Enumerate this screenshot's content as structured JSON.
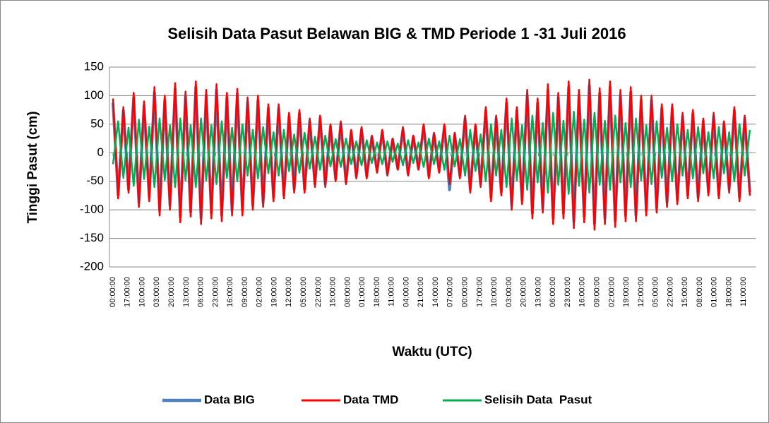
{
  "chart_data": {
    "type": "line",
    "title": "Selisih Data Pasut Belawan BIG & TMD Periode 1 -31 Juli 2016",
    "x_label": "Waktu (UTC)",
    "y_label": "Tinggi Pasut (cm)",
    "x": [
      0,
      6,
      12,
      18,
      24,
      30,
      36,
      42,
      48,
      54,
      60,
      66,
      72,
      78,
      84,
      90,
      96,
      102,
      108,
      114,
      120,
      126,
      132,
      138,
      144,
      150,
      156,
      162,
      168,
      174,
      180,
      186,
      192,
      198,
      204,
      210,
      216,
      222,
      228,
      234,
      240,
      246,
      252,
      258,
      264,
      270,
      276,
      282,
      288,
      294,
      300,
      306,
      312,
      318,
      324,
      330,
      336,
      342,
      348,
      354,
      360,
      366,
      372,
      378,
      384,
      390,
      396,
      402,
      408,
      414,
      420,
      426,
      432,
      438,
      444,
      450,
      456,
      462,
      468,
      474,
      480,
      486,
      492,
      498,
      504,
      510,
      516,
      522,
      528,
      534,
      540,
      546,
      552,
      558,
      564,
      570,
      576,
      582,
      588,
      594,
      600,
      606,
      612,
      618,
      624,
      630,
      636,
      642,
      648,
      654,
      660,
      666,
      672,
      678,
      684,
      690,
      696,
      702,
      708,
      714,
      720,
      726,
      732,
      738
    ],
    "series": [
      {
        "name": "Data BIG",
        "color": "#4f81bd",
        "width": 4,
        "values": [
          87,
          -74,
          74,
          -64,
          97,
          -87,
          83,
          -78,
          106,
          -101,
          92,
          -92,
          112,
          -112,
          98,
          -103,
          115,
          -115,
          101,
          -106,
          110,
          -110,
          97,
          -101,
          103,
          -101,
          89,
          -92,
          92,
          -87,
          78,
          -78,
          78,
          -74,
          64,
          -64,
          69,
          -64,
          55,
          -55,
          60,
          -55,
          46,
          -46,
          51,
          -51,
          37,
          -41,
          41,
          -41,
          28,
          -32,
          37,
          -37,
          23,
          -28,
          41,
          -37,
          28,
          -28,
          46,
          -41,
          32,
          -32,
          46,
          -65,
          32,
          -41,
          60,
          -64,
          46,
          -55,
          74,
          -78,
          60,
          -69,
          87,
          -92,
          74,
          -83,
          101,
          -106,
          87,
          -97,
          110,
          -115,
          97,
          -106,
          115,
          -121,
          101,
          -112,
          118,
          -124,
          104,
          -115,
          115,
          -120,
          101,
          -110,
          106,
          -110,
          92,
          -101,
          92,
          -97,
          78,
          -87,
          78,
          -83,
          64,
          -74,
          69,
          -78,
          55,
          -69,
          64,
          -74,
          51,
          -64,
          74,
          -78,
          60,
          -69
        ]
      },
      {
        "name": "Data TMD",
        "color": "#ff0000",
        "width": 2.5,
        "values": [
          95,
          -80,
          80,
          -70,
          105,
          -95,
          90,
          -85,
          115,
          -110,
          100,
          -100,
          122,
          -122,
          107,
          -112,
          125,
          -125,
          110,
          -115,
          120,
          -120,
          105,
          -110,
          112,
          -110,
          97,
          -100,
          100,
          -95,
          85,
          -85,
          85,
          -80,
          70,
          -70,
          75,
          -70,
          60,
          -60,
          65,
          -60,
          50,
          -50,
          55,
          -55,
          40,
          -45,
          45,
          -45,
          30,
          -35,
          40,
          -40,
          25,
          -30,
          45,
          -40,
          30,
          -30,
          50,
          -45,
          35,
          -35,
          50,
          -55,
          35,
          -45,
          65,
          -70,
          50,
          -60,
          80,
          -85,
          65,
          -75,
          95,
          -100,
          80,
          -90,
          110,
          -115,
          95,
          -105,
          120,
          -125,
          105,
          -115,
          125,
          -132,
          110,
          -122,
          128,
          -135,
          113,
          -125,
          125,
          -130,
          110,
          -120,
          115,
          -120,
          100,
          -110,
          100,
          -105,
          85,
          -95,
          85,
          -90,
          70,
          -80,
          75,
          -85,
          60,
          -75,
          70,
          -80,
          55,
          -70,
          80,
          -85,
          65,
          -75
        ]
      },
      {
        "name": "Selisih Data  Pasut",
        "color": "#00b050",
        "width": 2.5,
        "values": [
          -20,
          55,
          -44,
          44,
          -58,
          58,
          -46,
          46,
          -60,
          60,
          -48,
          48,
          -60,
          60,
          -48,
          48,
          -60,
          60,
          -48,
          48,
          -55,
          55,
          -44,
          44,
          -50,
          50,
          -40,
          40,
          -45,
          45,
          -36,
          36,
          -40,
          40,
          -32,
          32,
          -35,
          35,
          -28,
          28,
          -30,
          30,
          -24,
          24,
          -25,
          25,
          -20,
          20,
          -22,
          22,
          -18,
          18,
          -20,
          20,
          -16,
          16,
          -22,
          22,
          -18,
          18,
          -25,
          25,
          -20,
          20,
          -30,
          30,
          -24,
          24,
          -40,
          40,
          -32,
          32,
          -50,
          50,
          -40,
          40,
          -60,
          60,
          -48,
          48,
          -65,
          65,
          -52,
          52,
          -70,
          70,
          -56,
          56,
          -72,
          72,
          -58,
          58,
          -70,
          70,
          -56,
          56,
          -65,
          65,
          -52,
          52,
          -60,
          60,
          -48,
          48,
          -55,
          55,
          -44,
          44,
          -50,
          50,
          -40,
          40,
          -45,
          45,
          -36,
          36,
          -45,
          45,
          -36,
          36,
          -50,
          50,
          -40,
          40
        ]
      }
    ],
    "xlim": [
      0,
      743
    ],
    "xticks": [
      {
        "value": 0,
        "label": "00:00:00"
      },
      {
        "value": 17,
        "label": "17:00:00"
      },
      {
        "value": 34,
        "label": "10:00:00"
      },
      {
        "value": 51,
        "label": "03:00:00"
      },
      {
        "value": 68,
        "label": "20:00:00"
      },
      {
        "value": 85,
        "label": "13:00:00"
      },
      {
        "value": 102,
        "label": "06:00:00"
      },
      {
        "value": 119,
        "label": "23:00:00"
      },
      {
        "value": 136,
        "label": "16:00:00"
      },
      {
        "value": 153,
        "label": "09:00:00"
      },
      {
        "value": 170,
        "label": "02:00:00"
      },
      {
        "value": 187,
        "label": "19:00:00"
      },
      {
        "value": 204,
        "label": "12:00:00"
      },
      {
        "value": 221,
        "label": "05:00:00"
      },
      {
        "value": 238,
        "label": "22:00:00"
      },
      {
        "value": 255,
        "label": "15:00:00"
      },
      {
        "value": 272,
        "label": "08:00:00"
      },
      {
        "value": 289,
        "label": "01:00:00"
      },
      {
        "value": 306,
        "label": "18:00:00"
      },
      {
        "value": 323,
        "label": "11:00:00"
      },
      {
        "value": 340,
        "label": "04:00:00"
      },
      {
        "value": 357,
        "label": "21:00:00"
      },
      {
        "value": 374,
        "label": "14:00:00"
      },
      {
        "value": 391,
        "label": "07:00:00"
      },
      {
        "value": 408,
        "label": "00:00:00"
      },
      {
        "value": 425,
        "label": "17:00:00"
      },
      {
        "value": 442,
        "label": "10:00:00"
      },
      {
        "value": 459,
        "label": "03:00:00"
      },
      {
        "value": 476,
        "label": "20:00:00"
      },
      {
        "value": 493,
        "label": "13:00:00"
      },
      {
        "value": 510,
        "label": "06:00:00"
      },
      {
        "value": 527,
        "label": "23:00:00"
      },
      {
        "value": 544,
        "label": "16:00:00"
      },
      {
        "value": 561,
        "label": "09:00:00"
      },
      {
        "value": 578,
        "label": "02:00:00"
      },
      {
        "value": 595,
        "label": "19:00:00"
      },
      {
        "value": 612,
        "label": "12:00:00"
      },
      {
        "value": 629,
        "label": "05:00:00"
      },
      {
        "value": 646,
        "label": "22:00:00"
      },
      {
        "value": 663,
        "label": "15:00:00"
      },
      {
        "value": 680,
        "label": "08:00:00"
      },
      {
        "value": 697,
        "label": "01:00:00"
      },
      {
        "value": 714,
        "label": "18:00:00"
      },
      {
        "value": 731,
        "label": "11:00:00"
      }
    ],
    "ylim": [
      -200,
      150
    ],
    "yticks": [
      -200,
      -150,
      -100,
      -50,
      0,
      50,
      100,
      150
    ],
    "grid": true,
    "legend": "bottom"
  }
}
